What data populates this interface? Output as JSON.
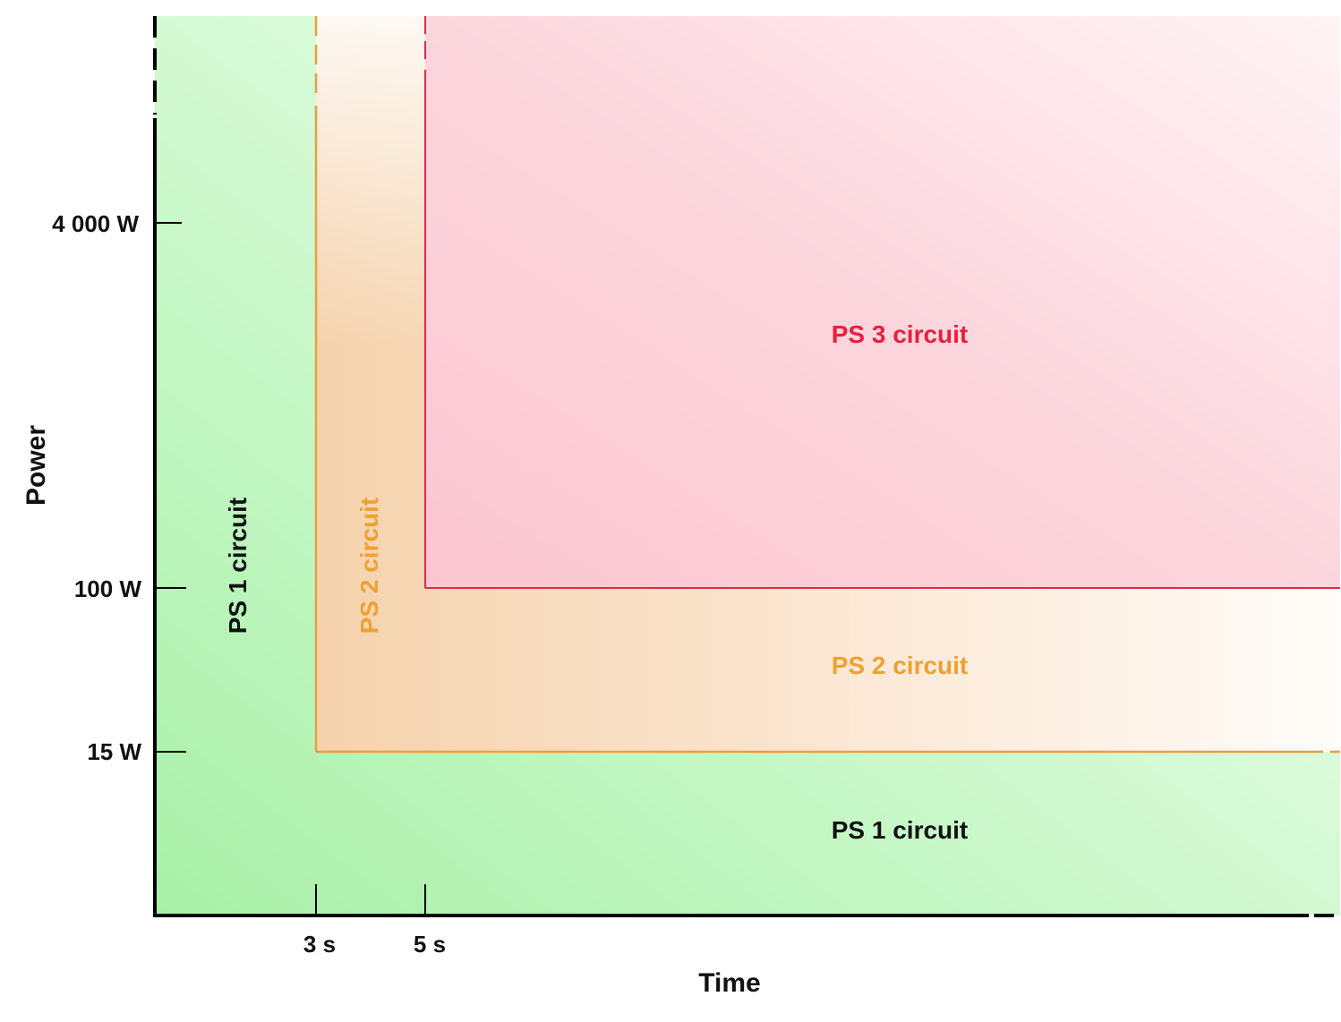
{
  "chart_data": {
    "type": "area",
    "title": "",
    "xlabel": "Time",
    "ylabel": "Power",
    "x_ticks": [
      "3 s",
      "5 s"
    ],
    "y_ticks": [
      "4 000 W",
      "100 W",
      "15 W"
    ],
    "regions": [
      {
        "name": "PS 1 circuit",
        "condition": "power < 15 W or time < 3 s",
        "color": "#a8f0a8",
        "labels": [
          "PS 1 circuit",
          "PS 1 circuit"
        ]
      },
      {
        "name": "PS 2 circuit",
        "condition": "power >= 15 W and time >= 3 s",
        "boundary": {
          "time": "3 s",
          "power": "15 W"
        },
        "color": "#f0a030",
        "labels": [
          "PS 2 circuit",
          "PS 2 circuit"
        ]
      },
      {
        "name": "PS 3 circuit",
        "condition": "power >= 100 W and time >= 5 s",
        "boundary": {
          "time": "5 s",
          "power": "100 W"
        },
        "color": "#e8203c",
        "labels": [
          "PS 3 circuit"
        ]
      }
    ],
    "colors": {
      "ps1_text": "#111111",
      "ps2_text": "#f0a030",
      "ps3_text": "#e8203c",
      "ps2_line": "#e8a040",
      "ps3_line": "#e4284a",
      "axis": "#000000"
    },
    "grid": false,
    "legend": "none"
  }
}
